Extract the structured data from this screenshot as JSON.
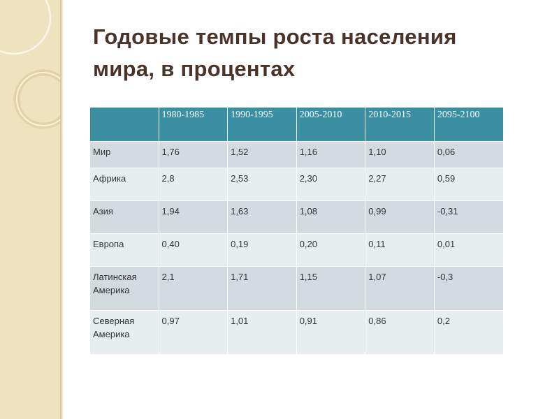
{
  "slide": {
    "title_line1": "Годовые темпы роста населения",
    "title_line2": "мира, в процентах"
  },
  "table": {
    "headers": [
      "",
      "1980-1985",
      "1990-1995",
      "2005-2010",
      "2010-2015",
      "2095-2100"
    ],
    "rows": [
      {
        "region": "Мир",
        "values": [
          "1,76",
          "1,52",
          "1,16",
          "1,10",
          "0,06"
        ]
      },
      {
        "region": "Африка",
        "values": [
          "2,8",
          "2,53",
          "2,30",
          "2,27",
          "0,59"
        ]
      },
      {
        "region": "Азия",
        "values": [
          "1,94",
          "1,63",
          "1,08",
          "0,99",
          "-0,31"
        ]
      },
      {
        "region": "Европа",
        "values": [
          "0,40",
          "0,19",
          "0,20",
          "0,11",
          "0,01"
        ]
      },
      {
        "region_line1": "Латинская",
        "region_line2": "Америка",
        "values": [
          "2,1",
          "1,71",
          "1,15",
          "1,07",
          "-0,3"
        ]
      },
      {
        "region_line1": "Северная",
        "region_line2": "Америка",
        "values": [
          "0,97",
          "1,01",
          "0,91",
          "0,86",
          "0,2"
        ]
      }
    ]
  }
}
